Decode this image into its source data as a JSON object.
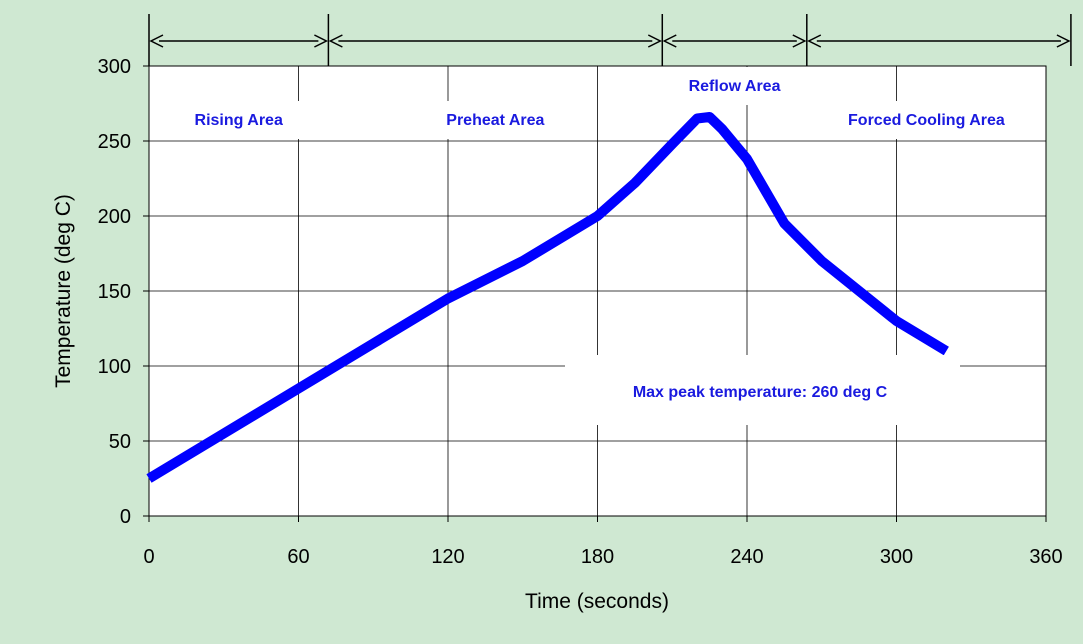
{
  "chart_data": {
    "type": "line",
    "title": "",
    "xlabel": "Time (seconds)",
    "ylabel": "Temperature (deg C)",
    "xlim": [
      0,
      360
    ],
    "ylim": [
      0,
      300
    ],
    "x_ticks": [
      "0",
      "60",
      "120",
      "180",
      "240",
      "300",
      "360"
    ],
    "y_ticks": [
      "0",
      "50",
      "100",
      "150",
      "200",
      "250",
      "300"
    ],
    "grid": true,
    "series": [
      {
        "name": "",
        "color": "#0000ff",
        "x": [
          0,
          30,
          60,
          90,
          120,
          150,
          180,
          195,
          210,
          220,
          225,
          230,
          240,
          255,
          270,
          300,
          320
        ],
        "y": [
          25,
          55,
          85,
          115,
          145,
          170,
          200,
          222,
          248,
          265,
          266,
          258,
          238,
          195,
          170,
          130,
          110
        ]
      }
    ],
    "regions": [
      {
        "label": "Rising Area",
        "x_start": 0,
        "x_end": 72
      },
      {
        "label": "Preheat Area",
        "x_start": 72,
        "x_end": 206
      },
      {
        "label": "Reflow Area",
        "x_start": 206,
        "x_end": 264
      },
      {
        "label": "Forced Cooling Area",
        "x_start": 264,
        "x_end": 370
      }
    ],
    "annotation": "Max peak temperature: 260 deg C",
    "colors": {
      "background": "#cfe8d2",
      "plot_background": "#ffffff",
      "line": "#0000ff",
      "text_accent": "#1a1adf"
    }
  }
}
